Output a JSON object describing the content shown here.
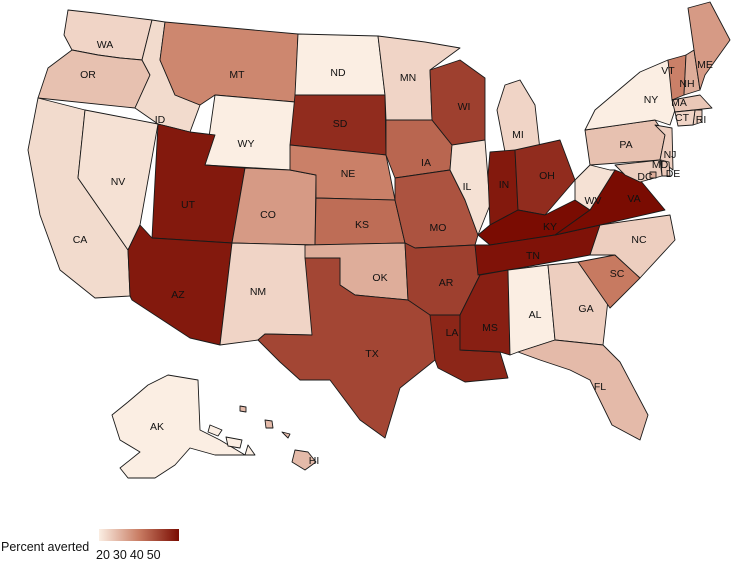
{
  "map": {
    "metric_title": "Percent averted",
    "scale": {
      "min": 20,
      "max": 55,
      "low_color": "#fbeee3",
      "high_color": "#7a0c02"
    },
    "legend_ticks": [
      "20",
      "30",
      "40",
      "50"
    ],
    "states": [
      {
        "abbr": "WA",
        "value": 24
      },
      {
        "abbr": "OR",
        "value": 27
      },
      {
        "abbr": "CA",
        "value": 23
      },
      {
        "abbr": "NV",
        "value": 22
      },
      {
        "abbr": "ID",
        "value": 23
      },
      {
        "abbr": "MT",
        "value": 36
      },
      {
        "abbr": "WY",
        "value": 19
      },
      {
        "abbr": "UT",
        "value": 53
      },
      {
        "abbr": "AZ",
        "value": 53
      },
      {
        "abbr": "CO",
        "value": 33
      },
      {
        "abbr": "NM",
        "value": 24
      },
      {
        "abbr": "ND",
        "value": 15
      },
      {
        "abbr": "SD",
        "value": 50
      },
      {
        "abbr": "NE",
        "value": 37
      },
      {
        "abbr": "KS",
        "value": 40
      },
      {
        "abbr": "OK",
        "value": 30
      },
      {
        "abbr": "TX",
        "value": 46
      },
      {
        "abbr": "MN",
        "value": 24
      },
      {
        "abbr": "IA",
        "value": 41
      },
      {
        "abbr": "MO",
        "value": 44
      },
      {
        "abbr": "AR",
        "value": 47
      },
      {
        "abbr": "LA",
        "value": 51
      },
      {
        "abbr": "WI",
        "value": 47
      },
      {
        "abbr": "IL",
        "value": 22
      },
      {
        "abbr": "MI",
        "value": 24
      },
      {
        "abbr": "IN",
        "value": 53
      },
      {
        "abbr": "OH",
        "value": 50
      },
      {
        "abbr": "KY",
        "value": 58
      },
      {
        "abbr": "TN",
        "value": 54
      },
      {
        "abbr": "MS",
        "value": 52
      },
      {
        "abbr": "AL",
        "value": 16
      },
      {
        "abbr": "GA",
        "value": 25
      },
      {
        "abbr": "FL",
        "value": 28
      },
      {
        "abbr": "SC",
        "value": 38
      },
      {
        "abbr": "NC",
        "value": 25
      },
      {
        "abbr": "VA",
        "value": 55
      },
      {
        "abbr": "WV",
        "value": 22
      },
      {
        "abbr": "PA",
        "value": 27
      },
      {
        "abbr": "NY",
        "value": 19
      },
      {
        "abbr": "VT",
        "value": 37
      },
      {
        "abbr": "NH",
        "value": 30
      },
      {
        "abbr": "ME",
        "value": 33
      },
      {
        "abbr": "MA",
        "value": 26
      },
      {
        "abbr": "RI",
        "value": 25
      },
      {
        "abbr": "CT",
        "value": 24
      },
      {
        "abbr": "NJ",
        "value": 25
      },
      {
        "abbr": "DE",
        "value": 26
      },
      {
        "abbr": "MD",
        "value": 25
      },
      {
        "abbr": "DC",
        "value": 30
      },
      {
        "abbr": "AK",
        "value": 16
      },
      {
        "abbr": "HI",
        "value": 28
      }
    ]
  }
}
